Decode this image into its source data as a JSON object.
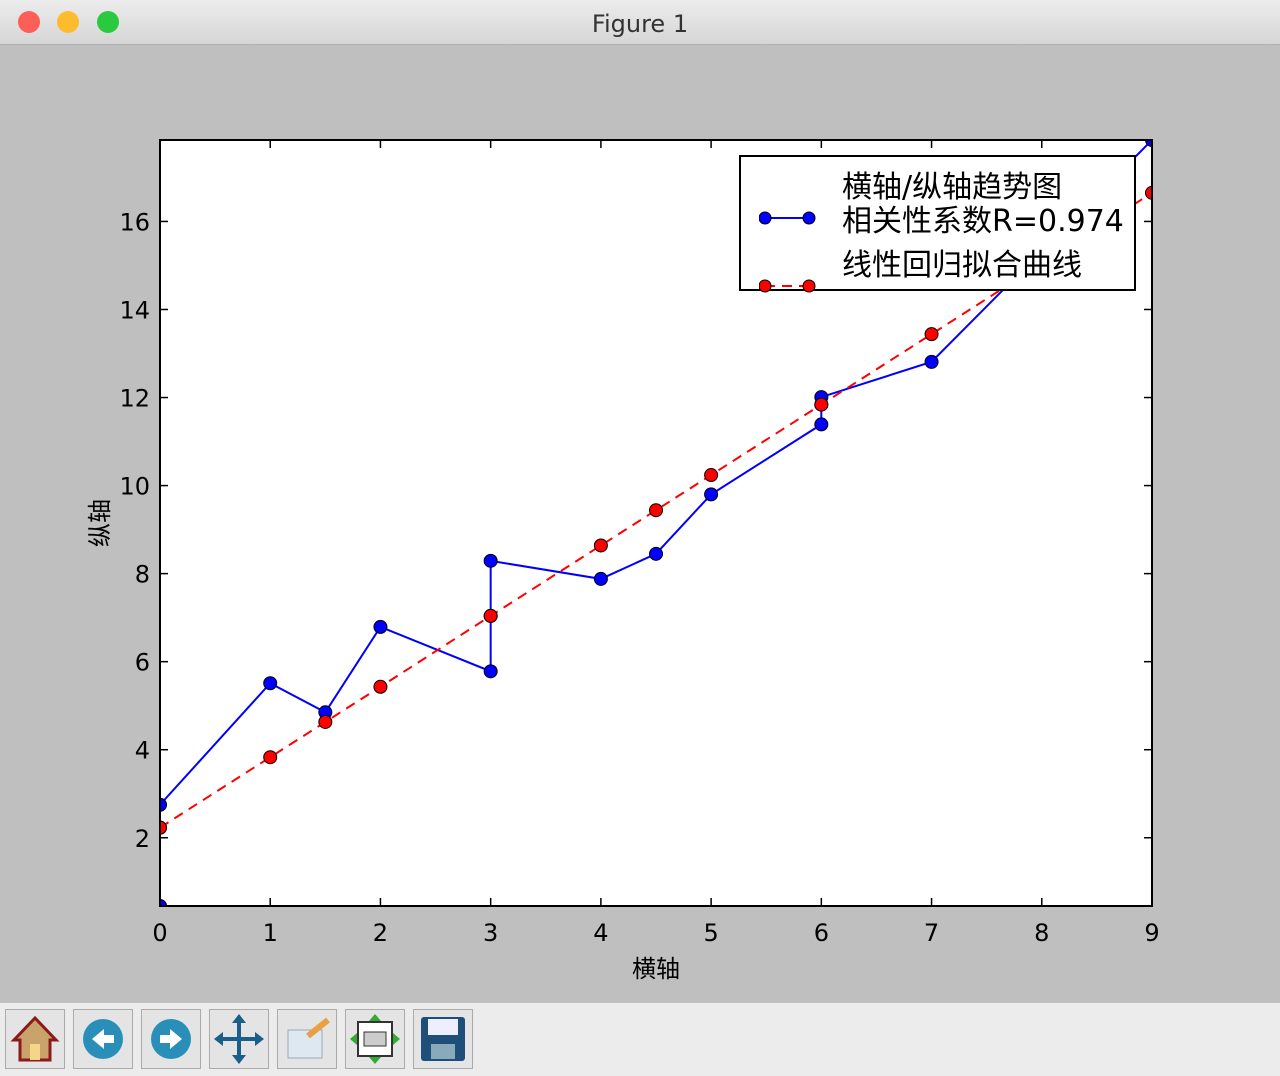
{
  "window": {
    "title": "Figure 1"
  },
  "chart_data": {
    "type": "line",
    "x": [
      0,
      0,
      1,
      1.5,
      2,
      3,
      3,
      4,
      4.5,
      5,
      6,
      6,
      7,
      9
    ],
    "series": [
      {
        "name": "横轴/纵轴趋势图\n相关性系数R=0.974",
        "color": "#0000ff",
        "linestyle": "solid",
        "marker": "o",
        "values": [
          0.45,
          2.75,
          5.51,
          4.85,
          6.79,
          5.78,
          8.29,
          7.88,
          8.45,
          9.8,
          11.39,
          12.01,
          12.81,
          17.85
        ]
      },
      {
        "name": "线性回归拟合曲线",
        "color": "#ff0000",
        "linestyle": "dashed",
        "marker": "o",
        "values": [
          2.23,
          2.23,
          3.83,
          4.63,
          5.43,
          7.04,
          7.04,
          8.64,
          9.44,
          10.24,
          11.84,
          11.84,
          13.44,
          16.65
        ]
      }
    ],
    "xlabel": "横轴",
    "ylabel": "纵轴",
    "xlim": [
      0,
      9
    ],
    "xticks": [
      0,
      1,
      2,
      3,
      4,
      5,
      6,
      7,
      8,
      9
    ],
    "ylim": [
      0.45,
      17.85
    ],
    "yticks": [
      2,
      4,
      6,
      8,
      10,
      12,
      14,
      16
    ],
    "grid": false,
    "legend": "upper right"
  }
}
